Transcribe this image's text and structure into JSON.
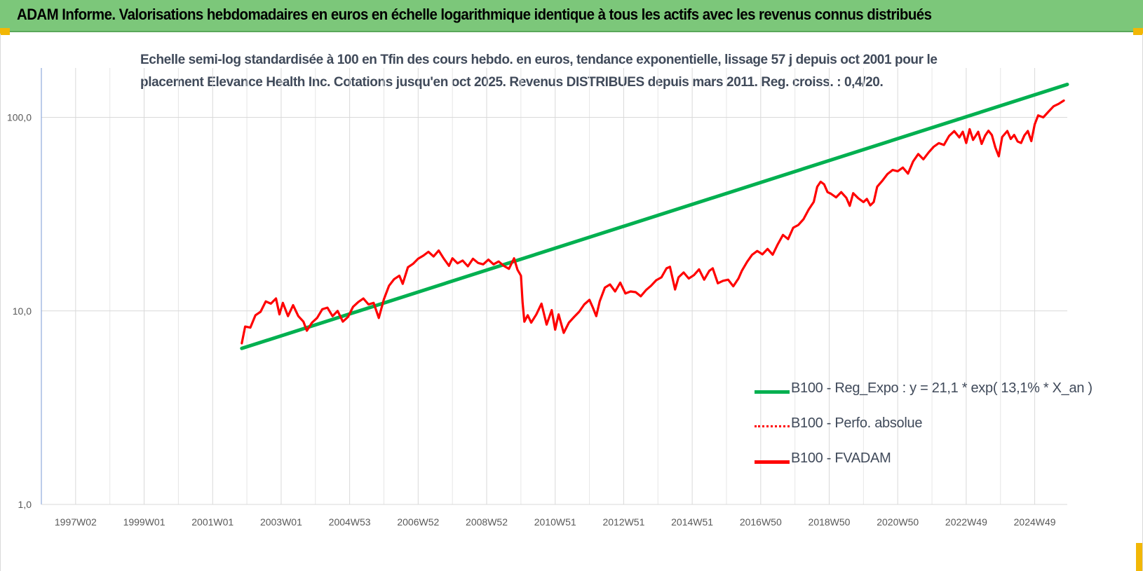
{
  "header": {
    "title": "ADAM Informe. Valorisations hebdomadaires en euros en échelle logarithmique identique à tous les actifs avec les revenus connus distribués"
  },
  "chart_data": {
    "type": "line",
    "title_line1": "Echelle semi-log standardisée à 100 en Tfin des cours hebdo. en euros, tendance exponentielle, lissage 57 j depuis oct 2001 pour le",
    "title_line2": "placement Elevance Health Inc. Cotations jusqu'en oct 2025. Revenus DISTRIBUES depuis mars 2011. Reg. croiss. : 0,4/20.",
    "y_scale": "log",
    "ylim": [
      1,
      180
    ],
    "y_ticks": [
      {
        "value": 1,
        "label": "1,0"
      },
      {
        "value": 10,
        "label": "10,0"
      },
      {
        "value": 100,
        "label": "100,0"
      }
    ],
    "x_ticks": [
      "1997W02",
      "1999W01",
      "2001W01",
      "2003W01",
      "2004W53",
      "2006W52",
      "2008W52",
      "2010W51",
      "2012W51",
      "2014W51",
      "2016W50",
      "2018W50",
      "2020W50",
      "2022W49",
      "2024W49"
    ],
    "x_tick_years": [
      1997.0,
      1999.0,
      2001.0,
      2003.0,
      2005.0,
      2007.0,
      2009.0,
      2011.0,
      2013.0,
      2015.0,
      2017.0,
      2019.0,
      2021.0,
      2023.0,
      2025.0
    ],
    "xlim": [
      1996.0,
      2025.95
    ],
    "grid": true,
    "legend_position": "bottom-right",
    "series": [
      {
        "name": "B100 - Reg_Expo : y = 21,1 * exp( 13,1% *  X_an )",
        "color": "#00b050",
        "style": "solid",
        "points": [
          [
            2001.85,
            6.4
          ],
          [
            2025.95,
            148
          ]
        ]
      },
      {
        "name": "B100 - Perfo. absolue",
        "color": "#ff0000",
        "style": "dotted",
        "points": []
      },
      {
        "name": "B100 - FVADAM",
        "color": "#ff0000",
        "style": "solid",
        "points": [
          [
            2001.85,
            6.8
          ],
          [
            2001.95,
            8.3
          ],
          [
            2002.1,
            8.2
          ],
          [
            2002.25,
            9.5
          ],
          [
            2002.4,
            9.9
          ],
          [
            2002.55,
            11.2
          ],
          [
            2002.7,
            10.9
          ],
          [
            2002.85,
            11.6
          ],
          [
            2002.95,
            9.6
          ],
          [
            2003.05,
            11.0
          ],
          [
            2003.2,
            9.4
          ],
          [
            2003.35,
            10.7
          ],
          [
            2003.5,
            9.4
          ],
          [
            2003.65,
            8.8
          ],
          [
            2003.75,
            7.9
          ],
          [
            2003.9,
            8.7
          ],
          [
            2004.05,
            9.2
          ],
          [
            2004.2,
            10.2
          ],
          [
            2004.35,
            10.4
          ],
          [
            2004.5,
            9.4
          ],
          [
            2004.65,
            10.0
          ],
          [
            2004.8,
            8.8
          ],
          [
            2004.95,
            9.3
          ],
          [
            2005.1,
            10.5
          ],
          [
            2005.25,
            11.1
          ],
          [
            2005.4,
            11.6
          ],
          [
            2005.55,
            10.8
          ],
          [
            2005.7,
            11.0
          ],
          [
            2005.85,
            9.2
          ],
          [
            2006.0,
            11.5
          ],
          [
            2006.15,
            13.5
          ],
          [
            2006.3,
            14.6
          ],
          [
            2006.45,
            15.2
          ],
          [
            2006.55,
            13.8
          ],
          [
            2006.7,
            16.8
          ],
          [
            2006.85,
            17.5
          ],
          [
            2007.0,
            18.6
          ],
          [
            2007.15,
            19.3
          ],
          [
            2007.3,
            20.2
          ],
          [
            2007.45,
            19.1
          ],
          [
            2007.6,
            20.5
          ],
          [
            2007.75,
            18.6
          ],
          [
            2007.9,
            17.1
          ],
          [
            2008.0,
            18.7
          ],
          [
            2008.15,
            17.6
          ],
          [
            2008.3,
            18.2
          ],
          [
            2008.45,
            17.0
          ],
          [
            2008.6,
            18.6
          ],
          [
            2008.75,
            17.7
          ],
          [
            2008.9,
            17.4
          ],
          [
            2009.05,
            18.4
          ],
          [
            2009.2,
            17.4
          ],
          [
            2009.35,
            18.0
          ],
          [
            2009.5,
            17.1
          ],
          [
            2009.65,
            16.5
          ],
          [
            2009.8,
            18.7
          ],
          [
            2009.9,
            16.3
          ],
          [
            2010.0,
            15.2
          ],
          [
            2010.05,
            11.0
          ],
          [
            2010.1,
            8.8
          ],
          [
            2010.2,
            9.5
          ],
          [
            2010.3,
            8.7
          ],
          [
            2010.45,
            9.6
          ],
          [
            2010.6,
            10.9
          ],
          [
            2010.75,
            8.5
          ],
          [
            2010.9,
            10.1
          ],
          [
            2011.0,
            8.0
          ],
          [
            2011.1,
            9.6
          ],
          [
            2011.25,
            7.7
          ],
          [
            2011.4,
            8.7
          ],
          [
            2011.55,
            9.3
          ],
          [
            2011.7,
            9.9
          ],
          [
            2011.85,
            10.8
          ],
          [
            2012.0,
            11.4
          ],
          [
            2012.1,
            10.4
          ],
          [
            2012.2,
            9.4
          ],
          [
            2012.3,
            11.2
          ],
          [
            2012.45,
            13.2
          ],
          [
            2012.6,
            13.7
          ],
          [
            2012.75,
            12.6
          ],
          [
            2012.9,
            14.0
          ],
          [
            2013.05,
            12.3
          ],
          [
            2013.2,
            12.6
          ],
          [
            2013.35,
            12.5
          ],
          [
            2013.5,
            11.9
          ],
          [
            2013.65,
            12.8
          ],
          [
            2013.8,
            13.5
          ],
          [
            2013.95,
            14.4
          ],
          [
            2014.1,
            14.9
          ],
          [
            2014.25,
            16.6
          ],
          [
            2014.35,
            16.9
          ],
          [
            2014.5,
            12.9
          ],
          [
            2014.6,
            14.9
          ],
          [
            2014.75,
            15.8
          ],
          [
            2014.9,
            14.7
          ],
          [
            2015.05,
            15.3
          ],
          [
            2015.2,
            16.4
          ],
          [
            2015.35,
            14.5
          ],
          [
            2015.5,
            16.1
          ],
          [
            2015.6,
            16.6
          ],
          [
            2015.75,
            13.9
          ],
          [
            2015.9,
            14.3
          ],
          [
            2016.05,
            14.5
          ],
          [
            2016.2,
            13.4
          ],
          [
            2016.35,
            14.7
          ],
          [
            2016.45,
            16.1
          ],
          [
            2016.6,
            17.9
          ],
          [
            2016.75,
            19.5
          ],
          [
            2016.9,
            20.4
          ],
          [
            2017.05,
            19.6
          ],
          [
            2017.2,
            20.9
          ],
          [
            2017.35,
            19.5
          ],
          [
            2017.5,
            22.1
          ],
          [
            2017.65,
            24.7
          ],
          [
            2017.8,
            23.5
          ],
          [
            2017.95,
            26.9
          ],
          [
            2018.1,
            27.8
          ],
          [
            2018.25,
            29.8
          ],
          [
            2018.4,
            33.4
          ],
          [
            2018.55,
            36.6
          ],
          [
            2018.65,
            43.8
          ],
          [
            2018.75,
            46.5
          ],
          [
            2018.85,
            45.1
          ],
          [
            2018.95,
            41.1
          ],
          [
            2019.05,
            40.3
          ],
          [
            2019.2,
            38.6
          ],
          [
            2019.35,
            41.1
          ],
          [
            2019.5,
            38.4
          ],
          [
            2019.6,
            34.9
          ],
          [
            2019.7,
            40.6
          ],
          [
            2019.85,
            38.2
          ],
          [
            2020.0,
            36.5
          ],
          [
            2020.1,
            37.9
          ],
          [
            2020.2,
            35.1
          ],
          [
            2020.3,
            36.5
          ],
          [
            2020.4,
            43.8
          ],
          [
            2020.55,
            47.0
          ],
          [
            2020.7,
            50.9
          ],
          [
            2020.85,
            53.5
          ],
          [
            2021.0,
            52.7
          ],
          [
            2021.15,
            55.0
          ],
          [
            2021.3,
            51.2
          ],
          [
            2021.45,
            59.2
          ],
          [
            2021.6,
            64.7
          ],
          [
            2021.75,
            60.7
          ],
          [
            2021.9,
            65.8
          ],
          [
            2022.05,
            70.5
          ],
          [
            2022.2,
            73.6
          ],
          [
            2022.35,
            72.0
          ],
          [
            2022.5,
            80.2
          ],
          [
            2022.65,
            84.9
          ],
          [
            2022.8,
            78.8
          ],
          [
            2022.9,
            84.3
          ],
          [
            2023.0,
            73.7
          ],
          [
            2023.1,
            86.9
          ],
          [
            2023.2,
            76.5
          ],
          [
            2023.35,
            84.2
          ],
          [
            2023.45,
            72.9
          ],
          [
            2023.55,
            80.4
          ],
          [
            2023.65,
            85.3
          ],
          [
            2023.75,
            81.0
          ],
          [
            2023.85,
            70.0
          ],
          [
            2023.95,
            62.9
          ],
          [
            2024.05,
            79.2
          ],
          [
            2024.2,
            85.0
          ],
          [
            2024.3,
            77.3
          ],
          [
            2024.4,
            81.1
          ],
          [
            2024.5,
            75.1
          ],
          [
            2024.6,
            73.7
          ],
          [
            2024.7,
            80.7
          ],
          [
            2024.8,
            85.0
          ],
          [
            2024.9,
            75.4
          ],
          [
            2025.0,
            92.1
          ],
          [
            2025.1,
            102.4
          ],
          [
            2025.25,
            100.0
          ],
          [
            2025.4,
            106.9
          ],
          [
            2025.55,
            114.1
          ],
          [
            2025.7,
            117.5
          ],
          [
            2025.85,
            122.2
          ]
        ]
      }
    ]
  },
  "legend": {
    "items": [
      {
        "label": "B100 - Reg_Expo : y = 21,1 * exp( 13,1% *  X_an )",
        "color": "#00b050",
        "style": "solid"
      },
      {
        "label": "B100 - Perfo. absolue",
        "color": "#ff0000",
        "style": "dotted"
      },
      {
        "label": "B100 - FVADAM",
        "color": "#ff0000",
        "style": "solid"
      }
    ]
  }
}
